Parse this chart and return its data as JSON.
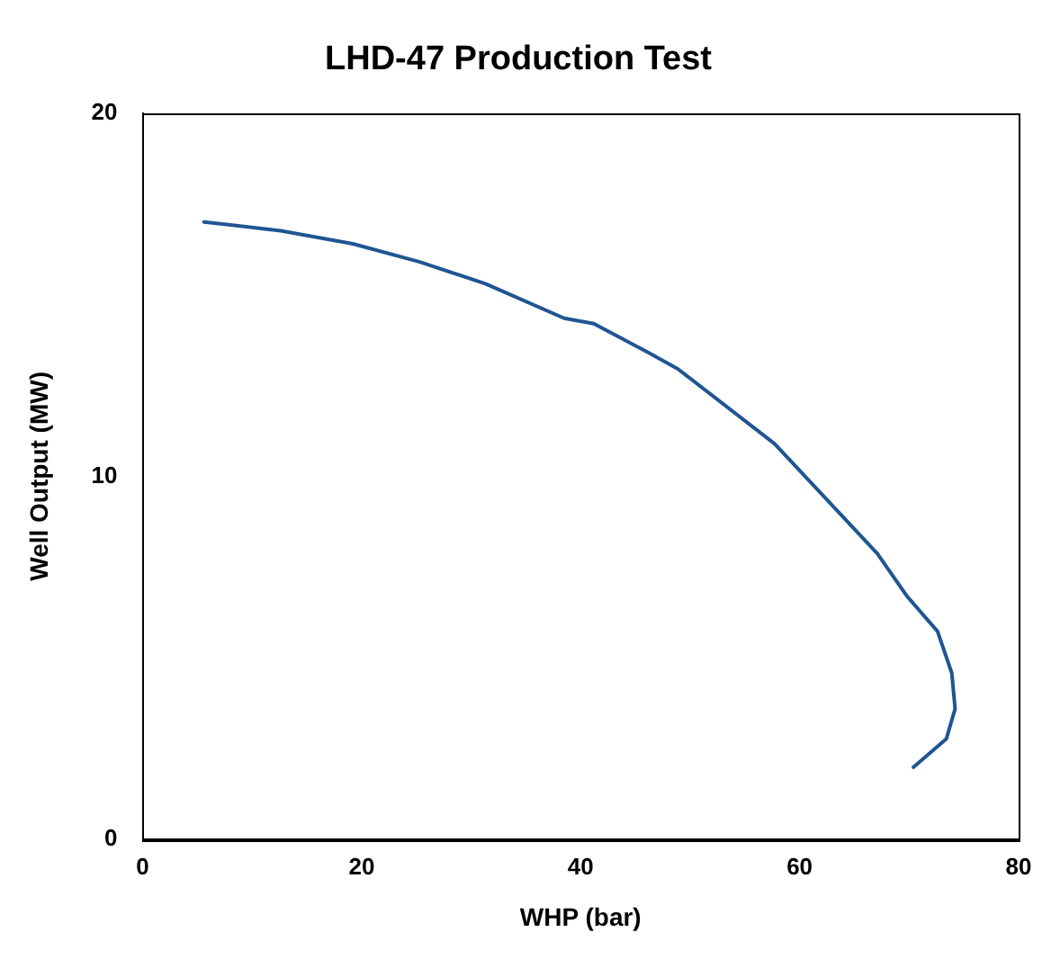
{
  "chart_data": {
    "type": "line",
    "title": "LHD-47 Production Test",
    "xlabel": "WHP (bar)",
    "ylabel": "Well Output (MW)",
    "xlim": [
      0,
      80
    ],
    "xticks": [
      0,
      20,
      40,
      60,
      80
    ],
    "ylim": [
      0,
      20
    ],
    "yticks": [
      0,
      10,
      20
    ],
    "grid": false,
    "legend": false,
    "marker": "none",
    "line_style": "solid",
    "series": [
      {
        "color": "#1f5592",
        "x": [
          5.6,
          12.6,
          19.2,
          25.3,
          31.3,
          38.5,
          41.2,
          46.2,
          48.9,
          57.7,
          67.1,
          69.8,
          72.6,
          73.9,
          74.2,
          73.4,
          70.4
        ],
        "values": [
          17.0,
          16.76,
          16.4,
          15.9,
          15.3,
          14.35,
          14.2,
          13.4,
          12.95,
          10.9,
          7.87,
          6.7,
          5.73,
          4.58,
          3.6,
          2.77,
          1.99
        ]
      }
    ]
  }
}
